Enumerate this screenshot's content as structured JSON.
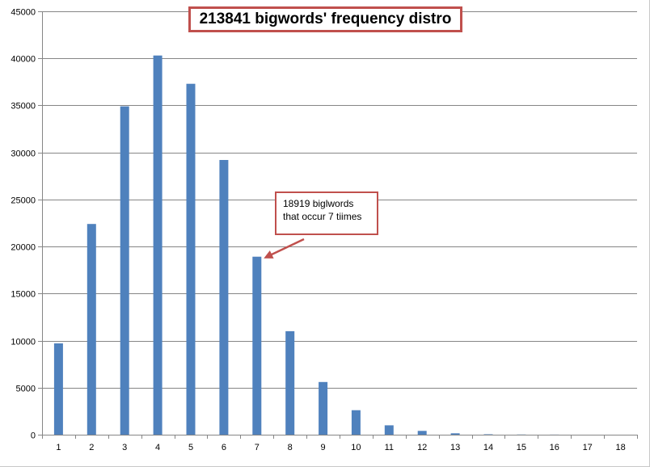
{
  "chart_data": {
    "type": "bar",
    "title": "213841 bigwords' frequency distro",
    "xlabel": "",
    "ylabel": "",
    "categories": [
      "1",
      "2",
      "3",
      "4",
      "5",
      "6",
      "7",
      "8",
      "9",
      "10",
      "11",
      "12",
      "13",
      "14",
      "15",
      "16",
      "17",
      "18"
    ],
    "values": [
      9700,
      22400,
      34900,
      40300,
      37300,
      29200,
      18919,
      11000,
      5600,
      2600,
      1000,
      400,
      150,
      40,
      15,
      5,
      2,
      1
    ],
    "ylim": [
      0,
      45000
    ],
    "yticks": [
      0,
      5000,
      10000,
      15000,
      20000,
      25000,
      30000,
      35000,
      40000,
      45000
    ],
    "grid": true,
    "legend": "none",
    "annotation": {
      "lines": [
        "18919 biglwords",
        "that occur 7 tiimes"
      ],
      "target_category": "7"
    },
    "colors": {
      "bar": "#4f81bd",
      "grid": "#868686",
      "axis": "#868686",
      "accent": "#c0504d"
    }
  }
}
